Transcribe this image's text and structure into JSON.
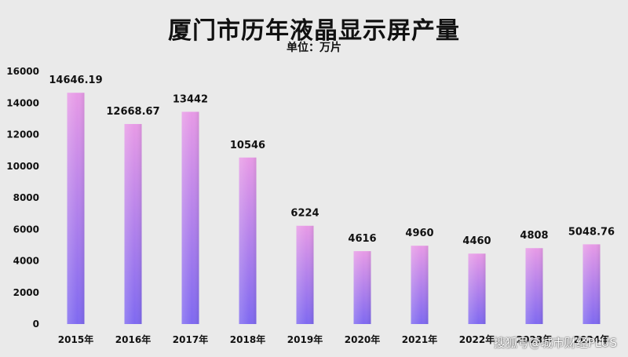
{
  "chart_data": {
    "type": "bar",
    "title": "厦门市历年液晶显示屏产量",
    "subtitle": "单位：万片",
    "categories": [
      "2015年",
      "2016年",
      "2017年",
      "2018年",
      "2019年",
      "2020年",
      "2021年",
      "2022年",
      "2023年",
      "2024年"
    ],
    "values": [
      14646.19,
      12668.67,
      13442,
      10546,
      6224,
      4616,
      4960,
      4460,
      4808,
      5048.76
    ],
    "data_labels": [
      "14646.19",
      "12668.67",
      "13442",
      "10546",
      "6224",
      "4616",
      "4960",
      "4460",
      "4808",
      "5048.76"
    ],
    "yticks": [
      0,
      2000,
      4000,
      6000,
      8000,
      10000,
      12000,
      14000,
      16000
    ],
    "ylim": [
      0,
      16000
    ],
    "grid": false,
    "legend": "none",
    "colors": {
      "bar_top": "#e79ae6",
      "bar_bottom": "#7f69f0",
      "background": "#eaeaea"
    }
  },
  "watermark": "搜狐号@城市财经PLUS"
}
